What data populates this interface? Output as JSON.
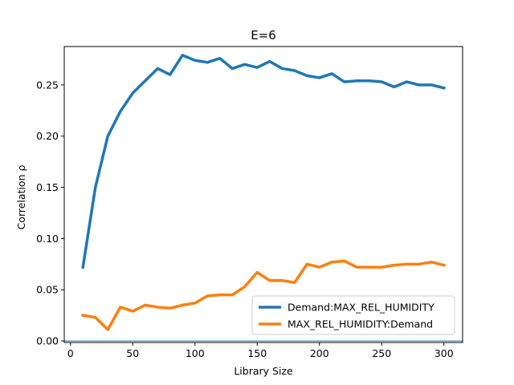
{
  "chart_data": {
    "type": "line",
    "title": "E=6",
    "xlabel": "Library Size",
    "ylabel": "Correlation ρ",
    "xlim": [
      -5,
      315
    ],
    "ylim": [
      -0.0015,
      0.2875
    ],
    "x_ticks": [
      0,
      50,
      100,
      150,
      200,
      250,
      300
    ],
    "x_tick_labels": [
      "0",
      "50",
      "100",
      "150",
      "200",
      "250",
      "300"
    ],
    "y_ticks": [
      0.0,
      0.05,
      0.1,
      0.15,
      0.2,
      0.25
    ],
    "y_tick_labels": [
      "0.00",
      "0.05",
      "0.10",
      "0.15",
      "0.20",
      "0.25"
    ],
    "grid": false,
    "legend_position": "lower-right",
    "x": [
      10,
      20,
      30,
      40,
      50,
      60,
      70,
      80,
      90,
      100,
      110,
      120,
      130,
      140,
      150,
      160,
      170,
      180,
      190,
      200,
      210,
      220,
      230,
      240,
      250,
      260,
      270,
      280,
      290,
      300
    ],
    "series": [
      {
        "name": "Demand:MAX_REL_HUMIDITY",
        "color": "#1f77b4",
        "values": [
          0.072,
          0.15,
          0.2,
          0.224,
          0.242,
          0.254,
          0.266,
          0.26,
          0.279,
          0.274,
          0.272,
          0.276,
          0.266,
          0.27,
          0.267,
          0.273,
          0.266,
          0.264,
          0.259,
          0.257,
          0.261,
          0.253,
          0.254,
          0.254,
          0.253,
          0.248,
          0.253,
          0.25,
          0.25,
          0.247
        ]
      },
      {
        "name": "MAX_REL_HUMIDITY:Demand",
        "color": "#ff7f0e",
        "values": [
          0.025,
          0.023,
          0.011,
          0.033,
          0.029,
          0.035,
          0.033,
          0.032,
          0.035,
          0.037,
          0.044,
          0.045,
          0.045,
          0.053,
          0.067,
          0.059,
          0.059,
          0.057,
          0.075,
          0.072,
          0.077,
          0.078,
          0.072,
          0.072,
          0.072,
          0.074,
          0.075,
          0.075,
          0.077,
          0.074
        ]
      }
    ],
    "reference_line": {
      "y": 0.0,
      "color": "#1f77b4"
    }
  }
}
